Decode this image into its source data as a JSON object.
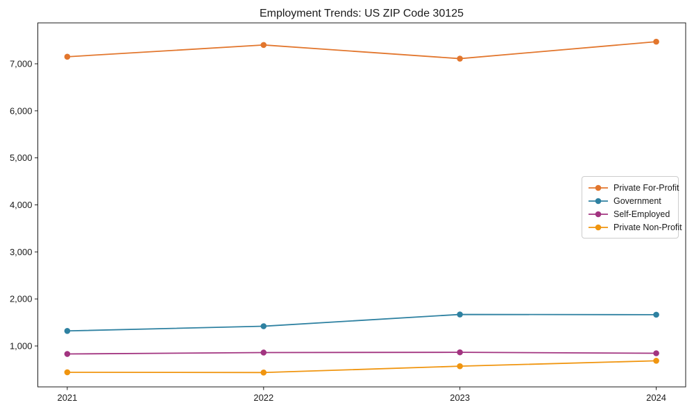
{
  "figure": {
    "background": "#ffffff",
    "axis_color": "#1a1a1a",
    "text_color": "#1a1a1a"
  },
  "chart_data": {
    "type": "line",
    "title": "Employment Trends: US ZIP Code 30125",
    "xlabel": "",
    "ylabel": "",
    "x": [
      2021,
      2022,
      2023,
      2024
    ],
    "x_tick_labels": [
      "2021",
      "2022",
      "2023",
      "2024"
    ],
    "y_ticks": [
      1000,
      2000,
      3000,
      4000,
      5000,
      6000,
      7000
    ],
    "y_tick_labels": [
      "1,000",
      "2,000",
      "3,000",
      "4,000",
      "5,000",
      "6,000",
      "7,000"
    ],
    "xlim": [
      2020.85,
      2024.15
    ],
    "ylim": [
      130,
      7870
    ],
    "grid": false,
    "marker": "circle",
    "legend_position": "right-center",
    "series": [
      {
        "name": "Private For-Profit",
        "color": "#e2762d",
        "values": [
          7150,
          7400,
          7110,
          7470
        ]
      },
      {
        "name": "Government",
        "color": "#2e81a1",
        "values": [
          1320,
          1420,
          1670,
          1665
        ]
      },
      {
        "name": "Self-Employed",
        "color": "#a23480",
        "values": [
          830,
          860,
          865,
          845
        ]
      },
      {
        "name": "Private Non-Profit",
        "color": "#f0950f",
        "values": [
          440,
          435,
          570,
          685
        ]
      }
    ]
  }
}
